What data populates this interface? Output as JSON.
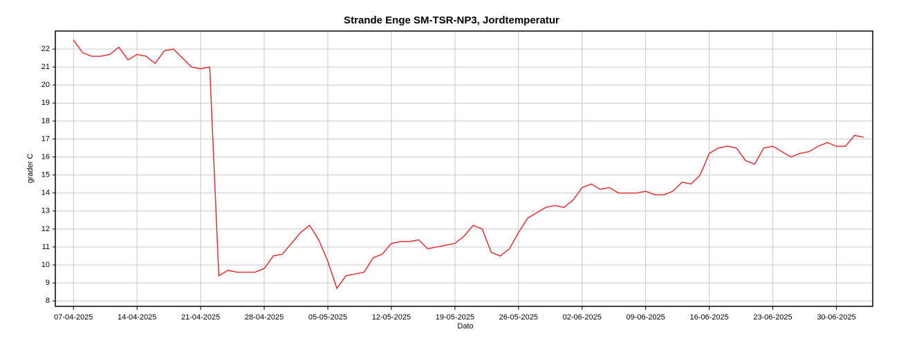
{
  "chart_data": {
    "type": "line",
    "title": "Strande Enge SM-TSR-NP3, Jordtemperatur",
    "xlabel": "Dato",
    "ylabel": "grader C",
    "x": [
      "07-04-2025",
      "08-04-2025",
      "09-04-2025",
      "10-04-2025",
      "11-04-2025",
      "12-04-2025",
      "13-04-2025",
      "14-04-2025",
      "15-04-2025",
      "16-04-2025",
      "17-04-2025",
      "18-04-2025",
      "19-04-2025",
      "20-04-2025",
      "21-04-2025",
      "22-04-2025",
      "23-04-2025",
      "24-04-2025",
      "25-04-2025",
      "26-04-2025",
      "27-04-2025",
      "28-04-2025",
      "29-04-2025",
      "30-04-2025",
      "01-05-2025",
      "02-05-2025",
      "03-05-2025",
      "04-05-2025",
      "05-05-2025",
      "06-05-2025",
      "07-05-2025",
      "08-05-2025",
      "09-05-2025",
      "10-05-2025",
      "11-05-2025",
      "12-05-2025",
      "13-05-2025",
      "14-05-2025",
      "15-05-2025",
      "16-05-2025",
      "17-05-2025",
      "18-05-2025",
      "19-05-2025",
      "20-05-2025",
      "21-05-2025",
      "22-05-2025",
      "23-05-2025",
      "24-05-2025",
      "25-05-2025",
      "26-05-2025",
      "27-05-2025",
      "28-05-2025",
      "29-05-2025",
      "30-05-2025",
      "31-05-2025",
      "01-06-2025",
      "02-06-2025",
      "03-06-2025",
      "04-06-2025",
      "05-06-2025",
      "06-06-2025",
      "07-06-2025",
      "08-06-2025",
      "09-06-2025",
      "10-06-2025",
      "11-06-2025",
      "12-06-2025",
      "13-06-2025",
      "14-06-2025",
      "15-06-2025",
      "16-06-2025",
      "17-06-2025",
      "18-06-2025",
      "19-06-2025",
      "20-06-2025",
      "21-06-2025",
      "22-06-2025",
      "23-06-2025",
      "24-06-2025",
      "25-06-2025",
      "26-06-2025",
      "27-06-2025",
      "28-06-2025",
      "29-06-2025",
      "30-06-2025",
      "01-07-2025",
      "02-07-2025",
      "03-07-2025"
    ],
    "series": [
      {
        "name": "Jordtemperatur",
        "color": "#e03030",
        "values": [
          22.5,
          21.8,
          21.6,
          21.6,
          21.7,
          22.1,
          21.4,
          21.7,
          21.6,
          21.2,
          21.9,
          22.0,
          21.5,
          21.0,
          20.9,
          21.0,
          9.4,
          9.7,
          9.6,
          9.6,
          9.6,
          9.8,
          10.5,
          10.6,
          11.2,
          11.8,
          12.2,
          11.4,
          10.2,
          8.7,
          9.4,
          9.5,
          9.6,
          10.4,
          10.6,
          11.2,
          11.3,
          11.3,
          11.4,
          10.9,
          11.0,
          11.1,
          11.2,
          11.6,
          12.2,
          12.0,
          10.7,
          10.5,
          10.9,
          11.8,
          12.6,
          12.9,
          13.2,
          13.3,
          13.2,
          13.6,
          14.3,
          14.5,
          14.2,
          14.3,
          14.0,
          14.0,
          14.0,
          14.1,
          13.9,
          13.9,
          14.1,
          14.6,
          14.5,
          15.0,
          16.2,
          16.5,
          16.6,
          16.5,
          15.8,
          15.6,
          16.5,
          16.6,
          16.3,
          16.0,
          16.2,
          16.3,
          16.6,
          16.8,
          16.6,
          16.6,
          17.2,
          17.1
        ]
      }
    ],
    "xlim": [
      "05-04-2025",
      "04-07-2025"
    ],
    "xticks": [
      "07-04-2025",
      "14-04-2025",
      "21-04-2025",
      "28-04-2025",
      "05-05-2025",
      "12-05-2025",
      "19-05-2025",
      "26-05-2025",
      "02-06-2025",
      "09-06-2025",
      "16-06-2025",
      "23-06-2025",
      "30-06-2025"
    ],
    "ylim": [
      7.7,
      23
    ],
    "yticks": [
      8,
      9,
      10,
      11,
      12,
      13,
      14,
      15,
      16,
      17,
      18,
      19,
      20,
      21,
      22
    ],
    "grid": true
  }
}
